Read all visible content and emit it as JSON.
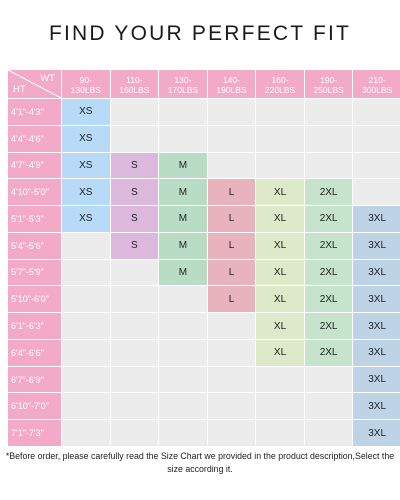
{
  "title": "FIND YOUR PERFECT FIT",
  "chart_data": {
    "type": "table",
    "corner": {
      "wt": "WT",
      "ht": "HT"
    },
    "weights": [
      "90-\n130LBS",
      "110-\n160LBS",
      "130-\n170LBS",
      "140-\n190LBS",
      "160-\n220LBS",
      "190-\n250LBS",
      "210-\n300LBS"
    ],
    "heights": [
      "4'1\"-4'3\"",
      "4'4\"-4'6\"",
      "4'7\"-4'9\"",
      "4'10\"-5'0\"",
      "5'1\"-5'3\"",
      "5'4\"-5'6\"",
      "5'7\"-5'9\"",
      "5'10\"-6'0\"",
      "6'1\"-6'3\"",
      "6'4\"-6'6\"",
      "6'7\"-6'9\"",
      "6'10\"-7'0\"",
      "7'1\"-7'3\""
    ],
    "sizes": [
      [
        "XS",
        "",
        "",
        "",
        "",
        "",
        ""
      ],
      [
        "XS",
        "",
        "",
        "",
        "",
        "",
        ""
      ],
      [
        "XS",
        "S",
        "M",
        "",
        "",
        "",
        ""
      ],
      [
        "XS",
        "S",
        "M",
        "L",
        "XL",
        "2XL",
        ""
      ],
      [
        "XS",
        "S",
        "M",
        "L",
        "XL",
        "2XL",
        "3XL"
      ],
      [
        "",
        "S",
        "M",
        "L",
        "XL",
        "2XL",
        "3XL"
      ],
      [
        "",
        "",
        "M",
        "L",
        "XL",
        "2XL",
        "3XL"
      ],
      [
        "",
        "",
        "",
        "L",
        "XL",
        "2XL",
        "3XL"
      ],
      [
        "",
        "",
        "",
        "",
        "XL",
        "2XL",
        "3XL"
      ],
      [
        "",
        "",
        "",
        "",
        "XL",
        "2XL",
        "3XL"
      ],
      [
        "",
        "",
        "",
        "",
        "",
        "",
        "3XL"
      ],
      [
        "",
        "",
        "",
        "",
        "",
        "",
        "3XL"
      ],
      [
        "",
        "",
        "",
        "",
        "",
        "",
        "3XL"
      ]
    ],
    "size_colors": {
      "XS": "#b6daf7",
      "S": "#dbb8dc",
      "M": "#b9dcc5",
      "L": "#e9b3bd",
      "XL": "#dde9c8",
      "2XL": "#c6e3cb",
      "3XL": "#bfd3e6"
    }
  },
  "colors": {
    "header": "#f3a9c8",
    "empty": "#ececec"
  },
  "note": "*Before order, please carefully read the Size Chart we provided in the product description,Select the size according it."
}
